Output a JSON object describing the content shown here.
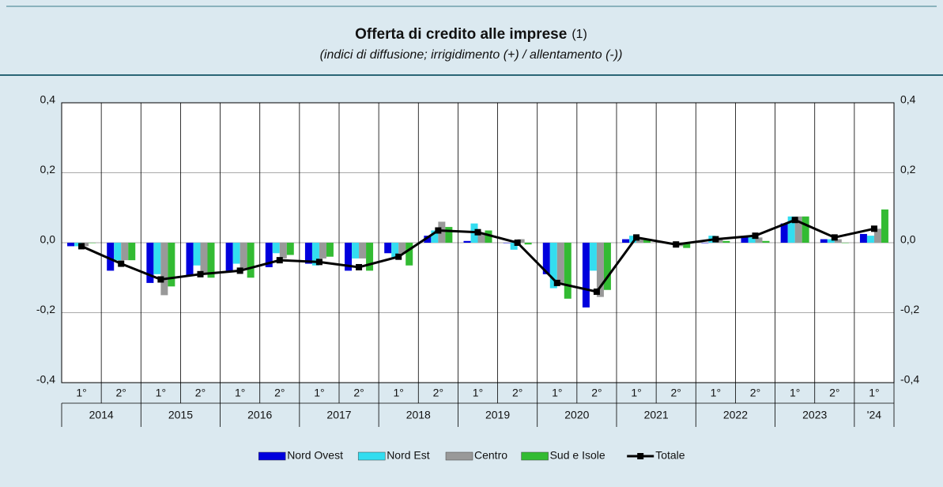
{
  "chart_data": {
    "type": "bar_line",
    "title": "Offerta di credito alle imprese",
    "title_note": "(1)",
    "subtitle": "(indici di diffusione; irrigidimento (+) / allentamento (-))",
    "categories": [
      "1°",
      "2°",
      "1°",
      "2°",
      "1°",
      "2°",
      "1°",
      "2°",
      "1°",
      "2°",
      "1°",
      "2°",
      "1°",
      "2°",
      "1°",
      "2°",
      "1°",
      "2°",
      "1°",
      "2°",
      "1°"
    ],
    "groups": [
      {
        "label": "2014",
        "span": 2
      },
      {
        "label": "2015",
        "span": 2
      },
      {
        "label": "2016",
        "span": 2
      },
      {
        "label": "2017",
        "span": 2
      },
      {
        "label": "2018",
        "span": 2
      },
      {
        "label": "2019",
        "span": 2
      },
      {
        "label": "2020",
        "span": 2
      },
      {
        "label": "2021",
        "span": 2
      },
      {
        "label": "2022",
        "span": 2
      },
      {
        "label": "2023",
        "span": 2
      },
      {
        "label": "'24",
        "span": 1
      }
    ],
    "series": [
      {
        "name": "Nord Ovest",
        "color": "#0000dd",
        "kind": "bar",
        "values": [
          -0.01,
          -0.08,
          -0.115,
          -0.095,
          -0.08,
          -0.07,
          -0.06,
          -0.08,
          -0.03,
          0.02,
          0.005,
          0,
          -0.09,
          -0.185,
          0.01,
          0,
          0,
          0.015,
          0.055,
          0.01,
          0.025
        ]
      },
      {
        "name": "Nord Est",
        "color": "#33ddf0",
        "kind": "bar",
        "values": [
          -0.01,
          -0.05,
          -0.09,
          -0.065,
          -0.06,
          -0.03,
          -0.065,
          -0.045,
          -0.045,
          0.035,
          0.055,
          -0.02,
          -0.13,
          -0.08,
          0.02,
          -0.005,
          0.02,
          0.015,
          0.075,
          0.01,
          0.02
        ]
      },
      {
        "name": "Centro",
        "color": "#999999",
        "kind": "bar",
        "values": [
          -0.01,
          -0.05,
          -0.15,
          -0.09,
          -0.075,
          -0.045,
          -0.045,
          -0.045,
          -0.03,
          0.06,
          0.025,
          0.01,
          -0.115,
          -0.155,
          0.01,
          -0.01,
          0.01,
          0.015,
          0.075,
          0.01,
          0.04
        ]
      },
      {
        "name": "Sud e Isole",
        "color": "#33bb33",
        "kind": "bar",
        "values": [
          0,
          -0.05,
          -0.125,
          -0.1,
          -0.1,
          -0.035,
          -0.04,
          -0.08,
          -0.065,
          0.045,
          0.035,
          -0.005,
          -0.16,
          -0.135,
          0.01,
          -0.015,
          0.005,
          0.005,
          0.075,
          0,
          0.095
        ]
      },
      {
        "name": "Totale",
        "color": "#000000",
        "kind": "line",
        "values": [
          -0.01,
          -0.06,
          -0.105,
          -0.09,
          -0.08,
          -0.05,
          -0.055,
          -0.07,
          -0.04,
          0.035,
          0.03,
          0,
          -0.115,
          -0.14,
          0.015,
          -0.005,
          0.01,
          0.02,
          0.065,
          0.015,
          0.04
        ]
      }
    ],
    "ylim": [
      -0.4,
      0.4
    ],
    "yticks": [
      {
        "value": -0.4,
        "label": "-0,4"
      },
      {
        "value": -0.2,
        "label": "-0,2"
      },
      {
        "value": 0,
        "label": "0,0"
      },
      {
        "value": 0.2,
        "label": "0,2"
      },
      {
        "value": 0.4,
        "label": "0,4"
      }
    ],
    "grid": true,
    "legend": "bottom"
  }
}
